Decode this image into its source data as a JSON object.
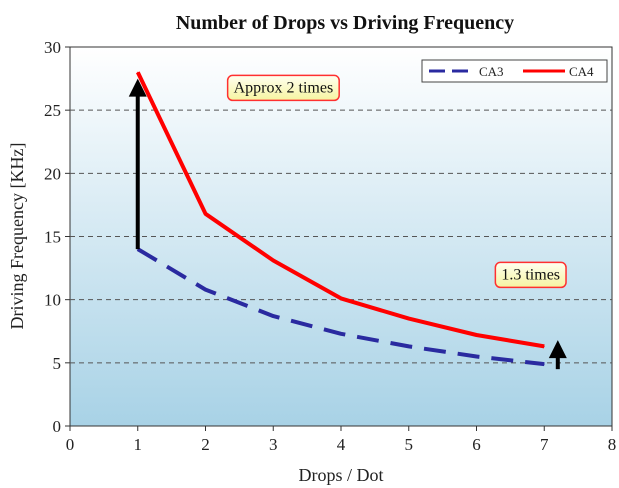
{
  "chart_data": {
    "type": "line",
    "title": "Number of Drops vs Driving Frequency",
    "xlabel": "Drops / Dot",
    "ylabel": "Driving Frequency [KHz]",
    "xlim": [
      0,
      8
    ],
    "ylim": [
      0,
      30
    ],
    "x_ticks": [
      "0",
      "1",
      "2",
      "3",
      "4",
      "5",
      "6",
      "7",
      "8"
    ],
    "y_ticks": [
      "0",
      "5",
      "10",
      "15",
      "20",
      "25",
      "30"
    ],
    "grid": "horizontal dashed",
    "legend_position": "top-right",
    "series": [
      {
        "name": "CA3",
        "color": "#2a2aa0",
        "style": "dashed",
        "x": [
          1,
          2,
          3,
          4,
          5,
          6,
          7
        ],
        "values": [
          14.0,
          10.8,
          8.7,
          7.3,
          6.3,
          5.5,
          4.9
        ]
      },
      {
        "name": "CA4",
        "color": "#ff0000",
        "style": "solid",
        "x": [
          1,
          2,
          3,
          4,
          5,
          6,
          7
        ],
        "values": [
          28.0,
          16.8,
          13.1,
          10.1,
          8.5,
          7.2,
          6.3
        ]
      }
    ],
    "annotations": [
      {
        "text": "Approx 2 times",
        "x": 3.15,
        "y": 26.8
      },
      {
        "text": "1.3 times",
        "x": 6.8,
        "y": 12.0
      }
    ],
    "arrows": [
      {
        "x": 1,
        "from": 14.0,
        "to": 27.5
      },
      {
        "x": 7.2,
        "from": 4.5,
        "to": 6.8
      }
    ]
  }
}
